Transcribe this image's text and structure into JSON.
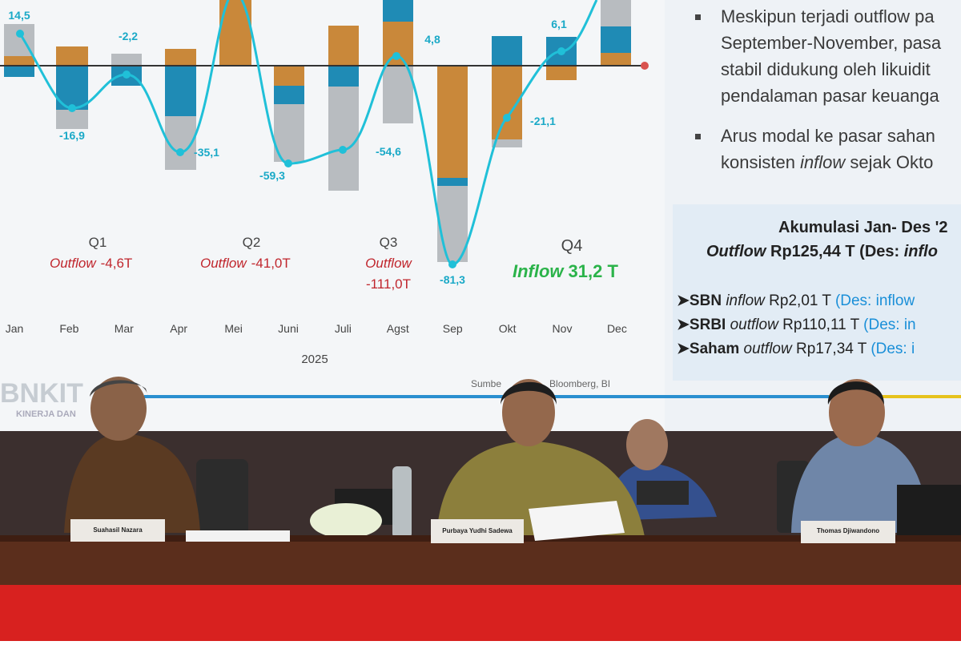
{
  "slide": {
    "chart": {
      "value_labels": [
        "14,5",
        "-16,9",
        "-2,2",
        "-35,1",
        "-59,3",
        "-54,6",
        "4,8",
        "-81,3",
        "-21,1",
        "6,1"
      ],
      "quarters": [
        {
          "name": "Q1",
          "flow": "Outflow",
          "amount": "-4,6T"
        },
        {
          "name": "Q2",
          "flow": "Outflow",
          "amount": "-41,0T"
        },
        {
          "name": "Q3",
          "flow": "Outflow",
          "amount": "-111,0T"
        },
        {
          "name": "Q4",
          "flow": "Inflow",
          "amount": "31,2 T"
        }
      ],
      "months": [
        "Jan",
        "Feb",
        "Mar",
        "Apr",
        "Mei",
        "Juni",
        "Juli",
        "Agst",
        "Sep",
        "Okt",
        "Nov",
        "Dec"
      ],
      "year": "2025",
      "source": [
        "Sumbe",
        "Bloomberg, BI"
      ]
    },
    "bullets": [
      [
        [
          "Meskipun terjadi outflow pa"
        ],
        [
          "September-November, pasa"
        ],
        [
          "stabil didukung oleh likuidit"
        ],
        [
          "pendalaman pasar keuanga"
        ]
      ],
      [
        [
          "Arus modal ke pasar sahan"
        ],
        [
          "konsisten ",
          "inflow",
          " sejak Okto"
        ]
      ]
    ],
    "summary": {
      "title": "Akumulasi Jan- Des '2",
      "total": [
        "Outflow",
        " Rp125,44 T (Des: ",
        "inflo"
      ],
      "items": [
        [
          "SBN ",
          "inflow",
          " Rp2,01 T ",
          "(Des: inflow"
        ],
        [
          "SRBI ",
          "outflow",
          " Rp110,11 T ",
          "(Des: in"
        ],
        [
          "Saham ",
          "outflow",
          " Rp17,34 T ",
          "(Des: i"
        ]
      ]
    },
    "logo": {
      "name": "BNKIT",
      "tagline": "KINERJA DAN"
    }
  },
  "nameplates": [
    "Suahasil Nazara",
    "Purbaya Yudhi Sadewa",
    "Thomas Djiwandono"
  ]
}
